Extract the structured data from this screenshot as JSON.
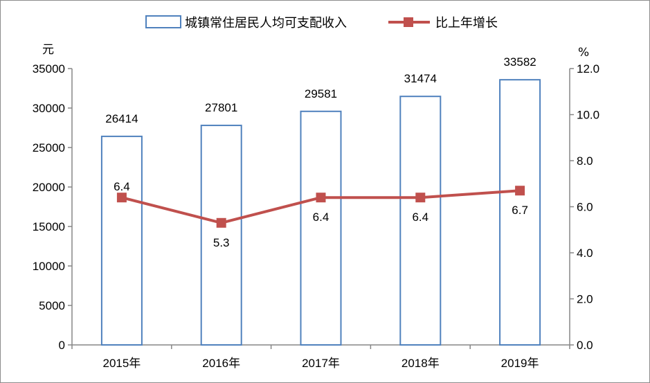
{
  "chart_data": {
    "type": "bar+line",
    "categories": [
      "2015年",
      "2016年",
      "2017年",
      "2018年",
      "2019年"
    ],
    "series": [
      {
        "name": "城镇常住居民人均可支配收入",
        "type": "bar",
        "axis": "left",
        "values": [
          26414,
          27801,
          29581,
          31474,
          33582
        ],
        "labels": [
          "26414",
          "27801",
          "29581",
          "31474",
          "33582"
        ],
        "color": "#4f81bd"
      },
      {
        "name": "比上年增长",
        "type": "line",
        "axis": "right",
        "values": [
          6.4,
          5.3,
          6.4,
          6.4,
          6.7
        ],
        "labels": [
          "6.4",
          "5.3",
          "6.4",
          "6.4",
          "6.7"
        ],
        "color": "#c0504d"
      }
    ],
    "y_left": {
      "unit": "元",
      "ylim": [
        0,
        35000
      ],
      "ticks": [
        "0",
        "5000",
        "10000",
        "15000",
        "20000",
        "25000",
        "30000",
        "35000"
      ]
    },
    "y_right": {
      "unit": "%",
      "ylim": [
        0,
        12
      ],
      "ticks": [
        "0.0",
        "2.0",
        "4.0",
        "6.0",
        "8.0",
        "10.0",
        "12.0"
      ]
    },
    "legend": {
      "position": "top",
      "bar_label": "城镇常住居民人均可支配收入",
      "line_label": "比上年增长"
    },
    "grid": false
  }
}
